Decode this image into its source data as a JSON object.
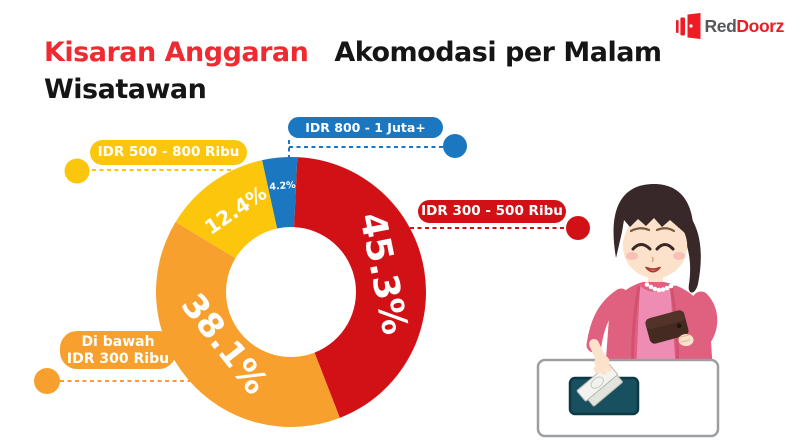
{
  "title": {
    "highlight": "Kisaran Anggaran",
    "rest": "Akomodasi per Malam",
    "line2": "Wisatawan"
  },
  "logo": {
    "text_dark": "Red",
    "text_red": "Doorz"
  },
  "chart_data": {
    "type": "pie",
    "subtype": "donut",
    "title": "Kisaran Anggaran Akomodasi per Malam Wisatawan",
    "unit": "%",
    "start_angle_deg": -12.4,
    "segments": [
      {
        "name": "IDR 800 - 1 Juta+",
        "value": 4.2,
        "pct_label": "4.2%",
        "color": "#1b78c0"
      },
      {
        "name": "IDR 300 - 500 Ribu",
        "value": 45.3,
        "pct_label": "45.3%",
        "color": "#d21116"
      },
      {
        "name": "Di bawah IDR 300 Ribu",
        "value": 38.1,
        "pct_label": "38.1%",
        "color": "#f7a02e"
      },
      {
        "name": "IDR 500 - 800 Ribu",
        "value": 12.4,
        "pct_label": "12.4%",
        "color": "#fcc60d"
      }
    ],
    "legend_position": "callouts"
  },
  "callouts": {
    "blue": {
      "label": "IDR 800 - 1 Juta+"
    },
    "yellow": {
      "label": "IDR 500 - 800 Ribu"
    },
    "red": {
      "label": "IDR 300 - 500 Ribu"
    },
    "orange": {
      "line1": "Di bawah",
      "line2": "IDR 300 Ribu"
    }
  }
}
